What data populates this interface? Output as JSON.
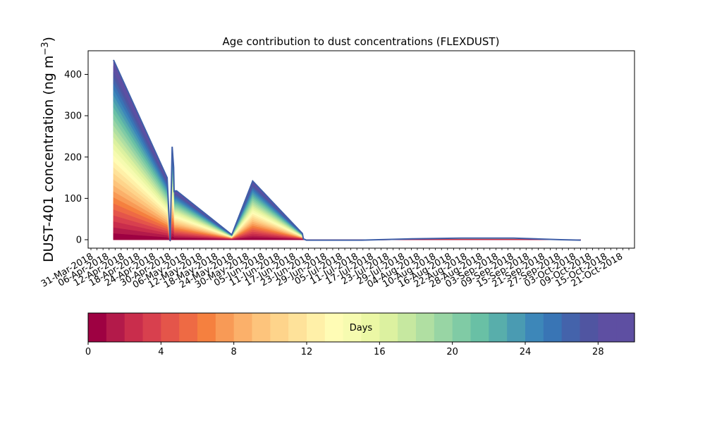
{
  "chart_data": {
    "type": "area",
    "title": "Age contribution to dust concentrations (FLEXDUST)",
    "ylabel_main": "DUST-401 concentration (ng m",
    "ylabel_unit_sup": "−3",
    "ylabel_close": ")",
    "xlabel": "",
    "ylim": [
      -15,
      450
    ],
    "yticks": [
      0,
      100,
      200,
      300,
      400
    ],
    "xlim": [
      0,
      1
    ],
    "stack_layers": 30,
    "layer_colors_spectral_r": true,
    "total_series": {
      "x": [
        0.0,
        0.108,
        0.114,
        0.118,
        0.121,
        0.122,
        0.123,
        0.127,
        0.238,
        0.28,
        0.38,
        0.382,
        0.388,
        0.5,
        0.6,
        0.7,
        0.805,
        0.9,
        0.94
      ],
      "y": [
        435,
        150,
        -3,
        225,
        175,
        115,
        118,
        118,
        12,
        142,
        15,
        2,
        -1,
        -1,
        2,
        4,
        4,
        0,
        -1
      ]
    },
    "x_tick_labels": [
      "31-Mar-2018",
      "06-Apr-2018",
      "12-Apr-2018",
      "18-Apr-2018",
      "24-Apr-2018",
      "30-Apr-2018",
      "06-May-2018",
      "12-May-2018",
      "18-May-2018",
      "24-May-2018",
      "30-May-2018",
      "05-Jun-2018",
      "11-Jun-2018",
      "17-Jun-2018",
      "23-Jun-2018",
      "29-Jun-2018",
      "05-Jul-2018",
      "11-Jul-2018",
      "17-Jul-2018",
      "23-Jul-2018",
      "29-Jul-2018",
      "04-Aug-2018",
      "10-Aug-2018",
      "16-Aug-2018",
      "22-Aug-2018",
      "28-Aug-2018",
      "03-Sep-2018",
      "09-Sep-2018",
      "15-Sep-2018",
      "21-Sep-2018",
      "27-Sep-2018",
      "03-Oct-2018",
      "09-Oct-2018",
      "15-Oct-2018",
      "21-Oct-2018"
    ],
    "colorbar": {
      "label": "Days",
      "ticks": [
        "0",
        "4",
        "8",
        "12",
        "16",
        "20",
        "24",
        "28"
      ],
      "min": 0,
      "max": 30,
      "colors": [
        "#9e0142",
        "#b31a4a",
        "#c92d4c",
        "#d8404e",
        "#e4554a",
        "#ee6a44",
        "#f5803f",
        "#f89a56",
        "#fbb06a",
        "#fdc47c",
        "#fed48b",
        "#fee29a",
        "#fff0a8",
        "#fffcb5",
        "#f6fbb0",
        "#ebf7a5",
        "#dcf1a0",
        "#c6e8a0",
        "#b0dfa2",
        "#98d5a4",
        "#80cba5",
        "#69c0a5",
        "#58aeab",
        "#4a9bb2",
        "#3d87b9",
        "#3975b5",
        "#4463ab",
        "#5055a1",
        "#5e4fa2",
        "#5e4fa2"
      ]
    }
  }
}
